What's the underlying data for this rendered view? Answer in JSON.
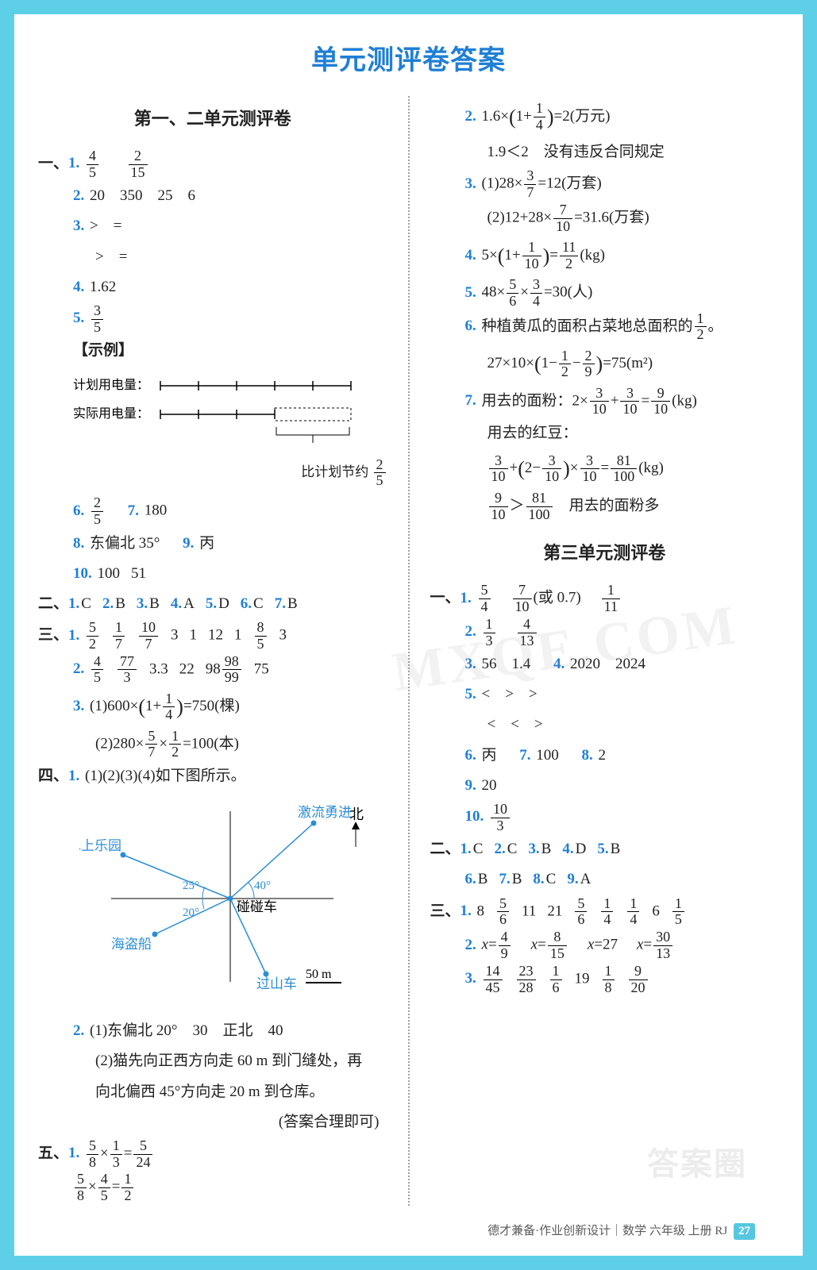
{
  "page_title": "单元测评卷答案",
  "footer_text": "德才兼备·作业创新设计｜数学 六年级 上册 ",
  "footer_book": "RJ",
  "footer_page": "27",
  "watermark1": "MXQE.COM",
  "watermark2": "答案圈",
  "test1": {
    "title": "第一、二单元测评卷",
    "sec1": {
      "label": "一、",
      "q1a_num": "4",
      "q1a_den": "5",
      "q1b_num": "2",
      "q1b_den": "15",
      "q2": "20　350　25　6",
      "q3a": ">　=",
      "q3b": ">　=",
      "q4": "1.62",
      "q5_num": "3",
      "q5_den": "5",
      "example_label": "【示例】",
      "plan_label": "计划用电量：",
      "actual_label": "实际用电量：",
      "saving_label_a": "比计划节约",
      "saving_frac_num": "2",
      "saving_frac_den": "5",
      "q6_num": "2",
      "q6_den": "5",
      "q7": "180",
      "q8a": "东偏北 35°",
      "q8b": "丙",
      "q10a": "100",
      "q10b": "51"
    },
    "sec2": {
      "label": "二、",
      "answers": [
        "C",
        "B",
        "B",
        "A",
        "D",
        "C",
        "B"
      ]
    },
    "sec3": {
      "label": "三、",
      "q1_parts": [
        {
          "type": "frac",
          "n": "5",
          "d": "2"
        },
        {
          "type": "frac",
          "n": "1",
          "d": "7"
        },
        {
          "type": "frac",
          "n": "10",
          "d": "7"
        },
        {
          "type": "txt",
          "v": "3"
        },
        {
          "type": "txt",
          "v": "1"
        },
        {
          "type": "txt",
          "v": "12"
        },
        {
          "type": "txt",
          "v": "1"
        },
        {
          "type": "frac",
          "n": "8",
          "d": "5"
        },
        {
          "type": "txt",
          "v": "3"
        }
      ],
      "q2_parts": [
        {
          "type": "frac",
          "n": "4",
          "d": "5"
        },
        {
          "type": "frac",
          "n": "77",
          "d": "3"
        },
        {
          "type": "txt",
          "v": "3.3"
        },
        {
          "type": "txt",
          "v": "22"
        },
        {
          "type": "mixed",
          "w": "98",
          "n": "98",
          "d": "99"
        },
        {
          "type": "txt",
          "v": "75"
        }
      ],
      "q3a_pre": "(1)600×",
      "q3a_in_n": "1",
      "q3a_in_d": "4",
      "q3a_post": "=750(棵)",
      "q3b_pre": "(2)280×",
      "q3b_f1n": "5",
      "q3b_f1d": "7",
      "q3b_f2n": "1",
      "q3b_f2d": "2",
      "q3b_post": "=100(本)"
    },
    "sec4": {
      "label": "四、",
      "q1": "(1)(2)(3)(4)如下图所示。",
      "compass": {
        "north": "北",
        "center": "碰碰车",
        "ne": "激流勇进",
        "nw": "水上乐园",
        "sw": "海盗船",
        "se": "过山车",
        "a1": "25°",
        "a2": "20°",
        "a3": "40°",
        "scale": "50 m",
        "dot_color": "#2a8dd6",
        "label_color": "#2a8dd6",
        "angle_color": "#2a8dd6"
      },
      "q2a": "(1)东偏北 20°　30　正北　40",
      "q2b": "(2)猫先向正西方向走 60 m 到门缝处，再",
      "q2c": "向北偏西 45°方向走 20 m 到仓库。",
      "q2d": "(答案合理即可)"
    },
    "sec5": {
      "label": "五、",
      "q1a": {
        "ln": "5",
        "ld": "8",
        "rn": "1",
        "rd": "3",
        "resn": "5",
        "resd": "24"
      },
      "q1b": {
        "ln": "5",
        "ld": "8",
        "rn": "4",
        "rd": "5",
        "resn": "1",
        "resd": "2"
      }
    },
    "right": {
      "q2_pre": "1.6×",
      "q2_in_n": "1",
      "q2_in_d": "4",
      "q2_post": "=2(万元)",
      "q2_line2": "1.9＜2　没有违反合同规定",
      "q3a_pre": "(1)28×",
      "q3a_n": "3",
      "q3a_d": "7",
      "q3a_post": "=12(万套)",
      "q3b_pre": "(2)12+28×",
      "q3b_n": "7",
      "q3b_d": "10",
      "q3b_post": "=31.6(万套)",
      "q4_pre": "5×",
      "q4_in_n": "1",
      "q4_in_d": "10",
      "q4_res_n": "11",
      "q4_res_d": "2",
      "q4_unit": "(kg)",
      "q5_pre": "48×",
      "q5_f1n": "5",
      "q5_f1d": "6",
      "q5_f2n": "3",
      "q5_f2d": "4",
      "q5_post": "=30(人)",
      "q6_text": "种植黄瓜的面积占菜地总面积的",
      "q6_n": "1",
      "q6_d": "2",
      "q6_end": "。",
      "q6b_pre": "27×10×",
      "q6b_f1n": "1",
      "q6b_f1d": "2",
      "q6b_f2n": "2",
      "q6b_f2d": "9",
      "q6b_post": "=75(m²)",
      "q7_text": "用去的面粉：2×",
      "q7_f1n": "3",
      "q7_f1d": "10",
      "q7_f2n": "3",
      "q7_f2d": "10",
      "q7_resn": "9",
      "q7_resd": "10",
      "q7_unit": "(kg)",
      "q7_l2": "用去的红豆：",
      "q7b_f1n": "3",
      "q7b_f1d": "10",
      "q7b_mid_n": "3",
      "q7b_mid_d": "10",
      "q7b_f3n": "3",
      "q7b_f3d": "10",
      "q7b_resn": "81",
      "q7b_resd": "100",
      "q7b_unit": "(kg)",
      "q7c_ln": "9",
      "q7c_ld": "10",
      "q7c_rn": "81",
      "q7c_rd": "100",
      "q7c_txt": "用去的面粉多"
    }
  },
  "test3": {
    "title": "第三单元测评卷",
    "sec1": {
      "label": "一、",
      "q1": [
        {
          "n": "5",
          "d": "4"
        },
        {
          "n": "7",
          "d": "10",
          "note": "(或 0.7)"
        },
        {
          "n": "1",
          "d": "11"
        }
      ],
      "q2": [
        {
          "n": "1",
          "d": "3"
        },
        {
          "n": "4",
          "d": "13"
        }
      ],
      "q3": "56　1.4",
      "q4": "2020　2024",
      "q5a": "<　>　>",
      "q5b": "<　<　>",
      "q6": "丙",
      "q7": "100",
      "q8": "2",
      "q9": "20",
      "q10_n": "10",
      "q10_d": "3"
    },
    "sec2": {
      "label": "二、",
      "row1": [
        "C",
        "C",
        "B",
        "D",
        "B"
      ],
      "row2": [
        "B",
        "B",
        "C",
        "A"
      ]
    },
    "sec3": {
      "label": "三、",
      "q1": [
        "8",
        {
          "n": "5",
          "d": "6"
        },
        "11",
        "21",
        {
          "n": "5",
          "d": "6"
        },
        {
          "n": "1",
          "d": "4"
        },
        {
          "n": "1",
          "d": "4"
        },
        "6",
        {
          "n": "1",
          "d": "5"
        }
      ],
      "q2": [
        {
          "n": "4",
          "d": "9"
        },
        {
          "n": "8",
          "d": "15"
        },
        "27",
        {
          "n": "30",
          "d": "13"
        }
      ],
      "q3": [
        {
          "n": "14",
          "d": "45"
        },
        {
          "n": "23",
          "d": "28"
        },
        {
          "n": "1",
          "d": "6"
        },
        "19",
        {
          "n": "1",
          "d": "8"
        },
        {
          "n": "9",
          "d": "20"
        }
      ]
    }
  }
}
